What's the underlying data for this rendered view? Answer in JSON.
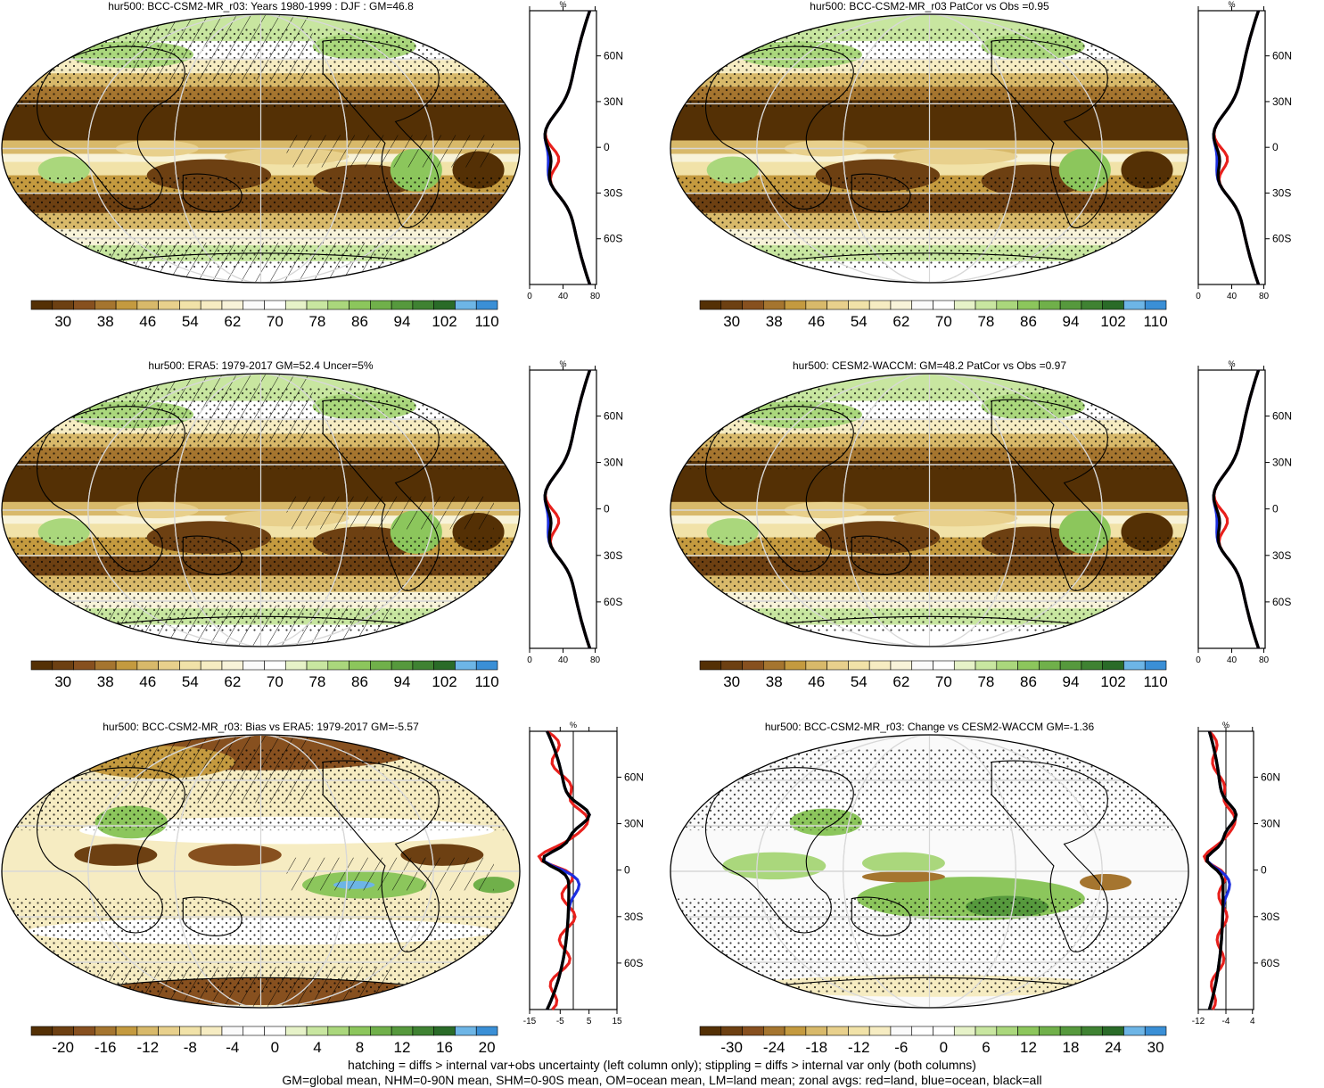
{
  "panels": [
    {
      "id": "p1",
      "title": "hur500: BCC-CSM2-MR_r03: Years 1980-1999 : DJF : GM=46.8",
      "colorbar": {
        "ticks": [
          "30",
          "38",
          "46",
          "54",
          "62",
          "70",
          "78",
          "86",
          "94",
          "102",
          "110"
        ],
        "colors": [
          "#543005",
          "#6d4012",
          "#87501f",
          "#a5752f",
          "#c49a3f",
          "#d8b96a",
          "#e8d08c",
          "#f1e2a8",
          "#f6ecc2",
          "#f8f3d9",
          "#fafafa",
          "#ffffff",
          "#e6f2c8",
          "#c8e6a0",
          "#aad77c",
          "#8cc65c",
          "#70b04a",
          "#56993d",
          "#3f8232",
          "#2a6b28",
          "#6db5e6",
          "#3a8fd6"
        ],
        "shown_start": 1
      },
      "zonal": {
        "unit": "%",
        "xticks": [
          "0",
          "40",
          "80"
        ],
        "yticks": [
          "60N",
          "30N",
          "0",
          "30S",
          "60S"
        ]
      },
      "hatching": true
    },
    {
      "id": "p2",
      "title": "hur500: BCC-CSM2-MR_r03 PatCor vs Obs =0.95",
      "colorbar": {
        "ticks": [
          "30",
          "38",
          "46",
          "54",
          "62",
          "70",
          "78",
          "86",
          "94",
          "102",
          "110"
        ]
      },
      "zonal": {
        "unit": "%",
        "xticks": [
          "0",
          "40",
          "80"
        ],
        "yticks": [
          "60N",
          "30N",
          "0",
          "30S",
          "60S"
        ]
      },
      "hatching": false
    },
    {
      "id": "p3",
      "title": "hur500: ERA5: 1979-2017 GM=52.4 Uncer=5%",
      "colorbar": {
        "ticks": [
          "30",
          "38",
          "46",
          "54",
          "62",
          "70",
          "78",
          "86",
          "94",
          "102",
          "110"
        ]
      },
      "zonal": {
        "unit": "%",
        "xticks": [
          "0",
          "40",
          "80"
        ],
        "yticks": [
          "60N",
          "30N",
          "0",
          "30S",
          "60S"
        ]
      },
      "hatching": true
    },
    {
      "id": "p4",
      "title": "hur500: CESM2-WACCM: GM=48.2 PatCor vs Obs =0.97",
      "colorbar": {
        "ticks": [
          "30",
          "38",
          "46",
          "54",
          "62",
          "70",
          "78",
          "86",
          "94",
          "102",
          "110"
        ]
      },
      "zonal": {
        "unit": "%",
        "xticks": [
          "0",
          "40",
          "80"
        ],
        "yticks": [
          "60N",
          "30N",
          "0",
          "30S",
          "60S"
        ]
      },
      "hatching": false
    },
    {
      "id": "p5",
      "title": "hur500: BCC-CSM2-MR_r03: Bias vs ERA5: 1979-2017 GM=-5.57",
      "colorbar": {
        "ticks": [
          "-20",
          "-16",
          "-12",
          "-8",
          "-4",
          "0",
          "4",
          "8",
          "12",
          "16",
          "20"
        ]
      },
      "zonal": {
        "unit": "%",
        "xticks": [
          "-15",
          "-5",
          "5",
          "15"
        ],
        "yticks": [
          "60N",
          "30N",
          "0",
          "30S",
          "60S"
        ]
      },
      "hatching": true
    },
    {
      "id": "p6",
      "title": "hur500: BCC-CSM2-MR_r03: Change vs CESM2-WACCM GM=-1.36",
      "colorbar": {
        "ticks": [
          "-30",
          "-24",
          "-18",
          "-12",
          "-6",
          "0",
          "6",
          "12",
          "18",
          "24",
          "30"
        ]
      },
      "zonal": {
        "unit": "%",
        "xticks": [
          "-12",
          "-4",
          "4"
        ],
        "yticks": [
          "60N",
          "30N",
          "0",
          "30S",
          "60S"
        ]
      },
      "hatching": false
    }
  ],
  "footer": {
    "line1": "hatching = diffs > internal var+obs uncertainty (left column only); stippling = diffs > internal var only (both columns)",
    "line2": "GM=global mean, NHM=0-90N mean, SHM=0-90S mean, OM=ocean mean, LM=land mean; zonal avgs: red=land, blue=ocean, black=all"
  },
  "colors": {
    "land_line": "#e8201c",
    "ocean_line": "#1c2fe0",
    "all_line": "#000000"
  }
}
